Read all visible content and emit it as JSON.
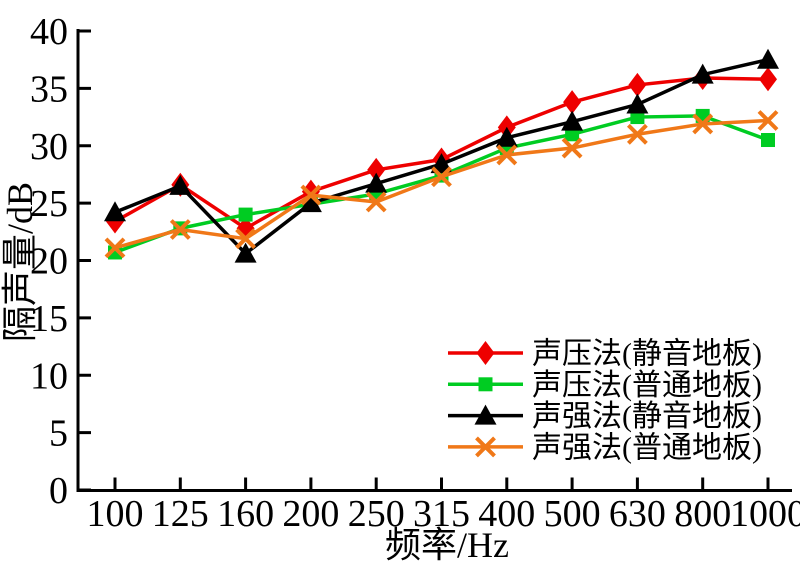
{
  "chart_data": {
    "type": "line",
    "title": "",
    "xlabel": "频率/Hz",
    "ylabel": "隔声量/dB",
    "categories": [
      "100",
      "125",
      "160",
      "200",
      "250",
      "315",
      "400",
      "500",
      "630",
      "800",
      "1000"
    ],
    "yticks": [
      "0",
      "5",
      "10",
      "15",
      "20",
      "25",
      "30",
      "35",
      "40"
    ],
    "ylim": [
      0,
      40
    ],
    "grid": false,
    "legend_position": "inside-bottom-right",
    "axis_color": "#000000",
    "series": [
      {
        "name": "声压法(静音地板)",
        "marker": "diamond",
        "color": "#ee0000",
        "values": [
          23.4,
          26.6,
          22.8,
          26.0,
          27.9,
          28.8,
          31.6,
          33.8,
          35.3,
          35.9,
          35.8
        ]
      },
      {
        "name": "声压法(普通地板)",
        "marker": "square",
        "color": "#00cc22",
        "values": [
          20.7,
          22.8,
          24.0,
          24.9,
          25.8,
          27.4,
          29.8,
          31.0,
          32.5,
          32.6,
          30.5
        ]
      },
      {
        "name": "声强法(静音地板)",
        "marker": "triangle",
        "color": "#000000",
        "values": [
          24.2,
          26.5,
          20.6,
          25.0,
          26.7,
          28.4,
          30.7,
          32.1,
          33.6,
          36.2,
          37.5
        ]
      },
      {
        "name": "声强法(普通地板)",
        "marker": "x",
        "color": "#f07818",
        "values": [
          21.1,
          22.7,
          21.9,
          25.7,
          25.1,
          27.3,
          29.2,
          29.8,
          31.0,
          31.9,
          32.2
        ]
      }
    ]
  }
}
